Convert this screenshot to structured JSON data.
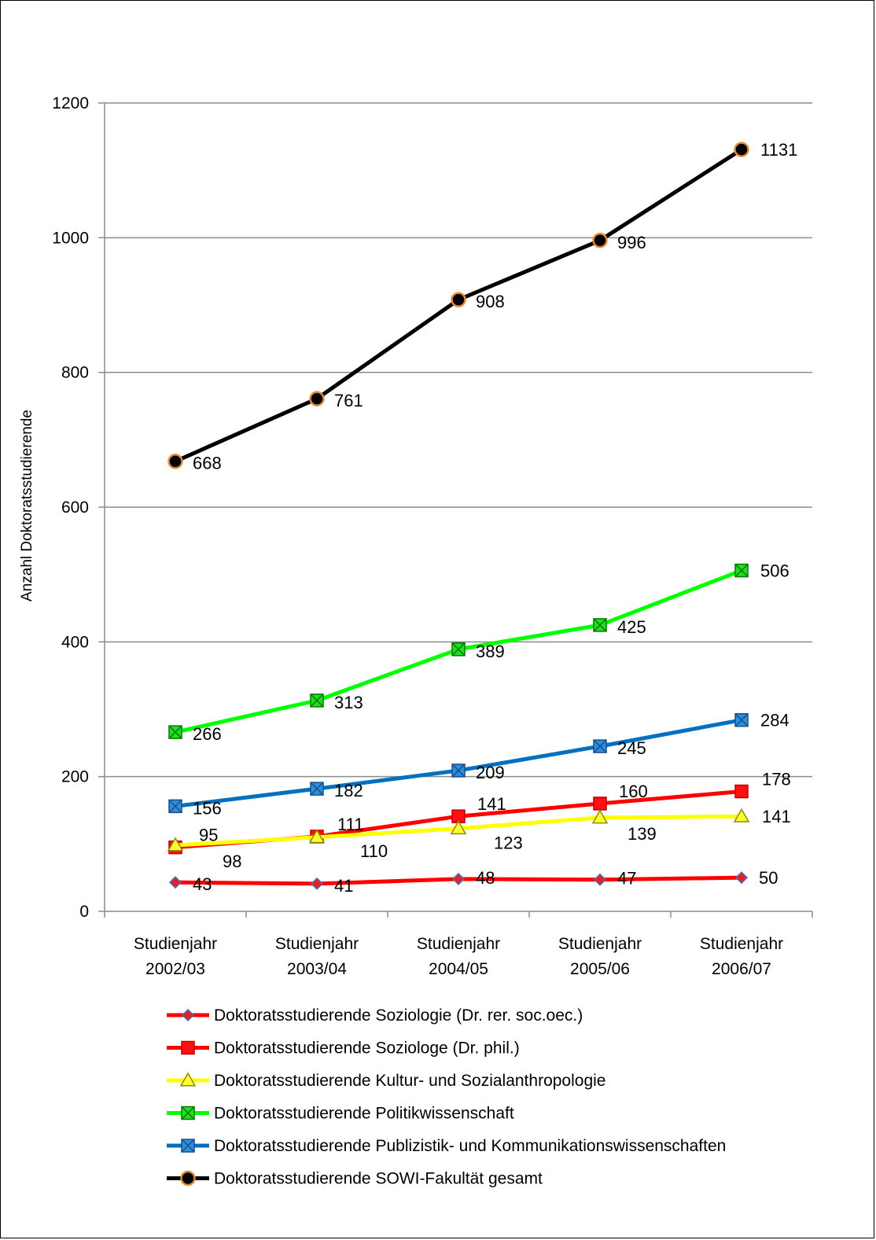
{
  "chart_data": {
    "type": "line",
    "title": "",
    "ylabel": "Anzahl Doktoratsstudierende",
    "xlabel": "",
    "ylim": [
      0,
      1200
    ],
    "yticks": [
      0,
      200,
      400,
      600,
      800,
      1000,
      1200
    ],
    "grid": true,
    "legend_position": "bottom",
    "categories": [
      [
        "Studienjahr",
        "2002/03"
      ],
      [
        "Studienjahr",
        "2003/04"
      ],
      [
        "Studienjahr",
        "2004/05"
      ],
      [
        "Studienjahr",
        "2005/06"
      ],
      [
        "Studienjahr",
        "2006/07"
      ]
    ],
    "series": [
      {
        "name": "Doktoratsstudierende Soziologie (Dr. rer. soc.oec.)",
        "values": [
          43,
          41,
          48,
          47,
          50
        ],
        "line_color": "#ff0000",
        "marker": "diamond",
        "marker_fill": "#e0202a",
        "marker_stroke": "#4f6fb0"
      },
      {
        "name": "Doktoratsstudierende Soziologe (Dr. phil.)",
        "values": [
          95,
          111,
          141,
          160,
          178
        ],
        "line_color": "#ff0000",
        "marker": "square",
        "marker_fill": "#ff1010",
        "marker_stroke": "#c00000"
      },
      {
        "name": "Doktoratsstudierende Kultur- und Sozialanthropologie",
        "values": [
          98,
          110,
          123,
          139,
          141
        ],
        "line_color": "#ffff00",
        "marker": "triangle",
        "marker_fill": "#ffff33",
        "marker_stroke": "#8c8c00"
      },
      {
        "name": "Doktoratsstudierende Politikwissenschaft",
        "values": [
          266,
          313,
          389,
          425,
          506
        ],
        "line_color": "#00ff00",
        "marker": "xsquare",
        "marker_fill": "#22dd22",
        "marker_stroke": "#007a00"
      },
      {
        "name": "Doktoratsstudierende Publizistik- und Kommunikationswissenschaften",
        "values": [
          156,
          182,
          209,
          245,
          284
        ],
        "line_color": "#0070c0",
        "marker": "xsquare",
        "marker_fill": "#2c8fdc",
        "marker_stroke": "#1a4f8a"
      },
      {
        "name": "Doktoratsstudierende SOWI-Fakultät gesamt",
        "values": [
          668,
          761,
          908,
          996,
          1131
        ],
        "line_color": "#000000",
        "marker": "circle",
        "marker_fill": "#000000",
        "marker_stroke": "#e08a3a"
      }
    ]
  }
}
